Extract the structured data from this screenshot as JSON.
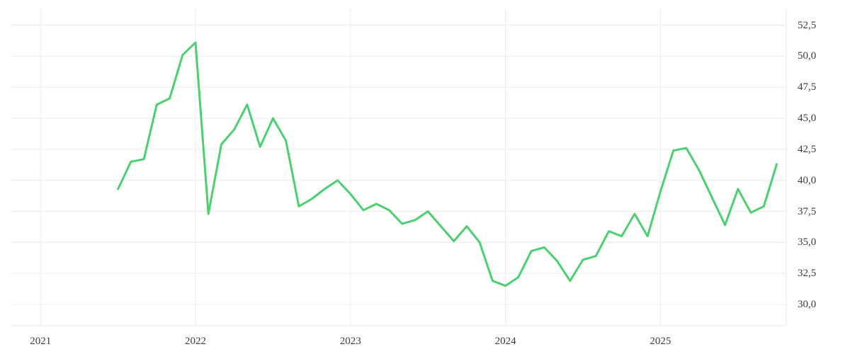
{
  "chart_data": {
    "type": "line",
    "title": "",
    "legend": "none",
    "grid": true,
    "background_color": "#ffffff",
    "line_color": "#4ccf6f",
    "grid_color": "#ececec",
    "border_color": "#e7e7e7",
    "label_color": "#3c3c3c",
    "decimal_separator": ",",
    "ylim": [
      28.1,
      53.9
    ],
    "x_range": [
      "2021-07",
      "2025-10"
    ],
    "x": [
      "2021-07",
      "2021-08",
      "2021-09",
      "2021-10",
      "2021-11",
      "2021-12",
      "2022-01",
      "2022-02",
      "2022-03",
      "2022-04",
      "2022-05",
      "2022-06",
      "2022-07",
      "2022-08",
      "2022-09",
      "2022-10",
      "2022-11",
      "2022-12",
      "2023-01",
      "2023-02",
      "2023-03",
      "2023-04",
      "2023-05",
      "2023-06",
      "2023-07",
      "2023-08",
      "2023-09",
      "2023-10",
      "2023-11",
      "2023-12",
      "2024-01",
      "2024-02",
      "2024-03",
      "2024-04",
      "2024-05",
      "2024-06",
      "2024-07",
      "2024-08",
      "2024-09",
      "2024-10",
      "2024-11",
      "2024-12",
      "2025-01",
      "2025-02",
      "2025-03",
      "2025-04",
      "2025-05",
      "2025-06",
      "2025-07",
      "2025-08",
      "2025-09",
      "2025-10"
    ],
    "values": [
      39.3,
      41.5,
      41.7,
      46.1,
      46.6,
      50.1,
      51.1,
      37.3,
      42.9,
      44.1,
      46.1,
      42.7,
      45.0,
      43.2,
      37.9,
      38.5,
      39.3,
      40.0,
      38.9,
      37.6,
      38.1,
      37.6,
      36.5,
      36.8,
      37.5,
      36.3,
      35.1,
      36.3,
      35.0,
      31.9,
      31.5,
      32.2,
      34.3,
      34.6,
      33.5,
      31.9,
      33.6,
      33.9,
      35.9,
      35.5,
      37.3,
      35.5,
      39.1,
      42.4,
      42.6,
      40.8,
      38.6,
      36.4,
      39.3,
      37.4,
      37.9,
      41.3
    ],
    "y_axis": {
      "side": "right",
      "ticks": [
        {
          "label": "52,5",
          "value": 52.5
        },
        {
          "label": "50,0",
          "value": 50.0
        },
        {
          "label": "47,5",
          "value": 47.5
        },
        {
          "label": "45,0",
          "value": 45.0
        },
        {
          "label": "42,5",
          "value": 42.5
        },
        {
          "label": "40,0",
          "value": 40.0
        },
        {
          "label": "37,5",
          "value": 37.5
        },
        {
          "label": "35,0",
          "value": 35.0
        },
        {
          "label": "32,5",
          "value": 32.5
        },
        {
          "label": "30,0",
          "value": 30.0
        }
      ]
    },
    "x_axis": {
      "side": "bottom",
      "ticks": [
        {
          "label": "2021",
          "year": 2021
        },
        {
          "label": "2022",
          "year": 2022
        },
        {
          "label": "2023",
          "year": 2023
        },
        {
          "label": "2024",
          "year": 2024
        },
        {
          "label": "2025",
          "year": 2025
        }
      ]
    }
  }
}
